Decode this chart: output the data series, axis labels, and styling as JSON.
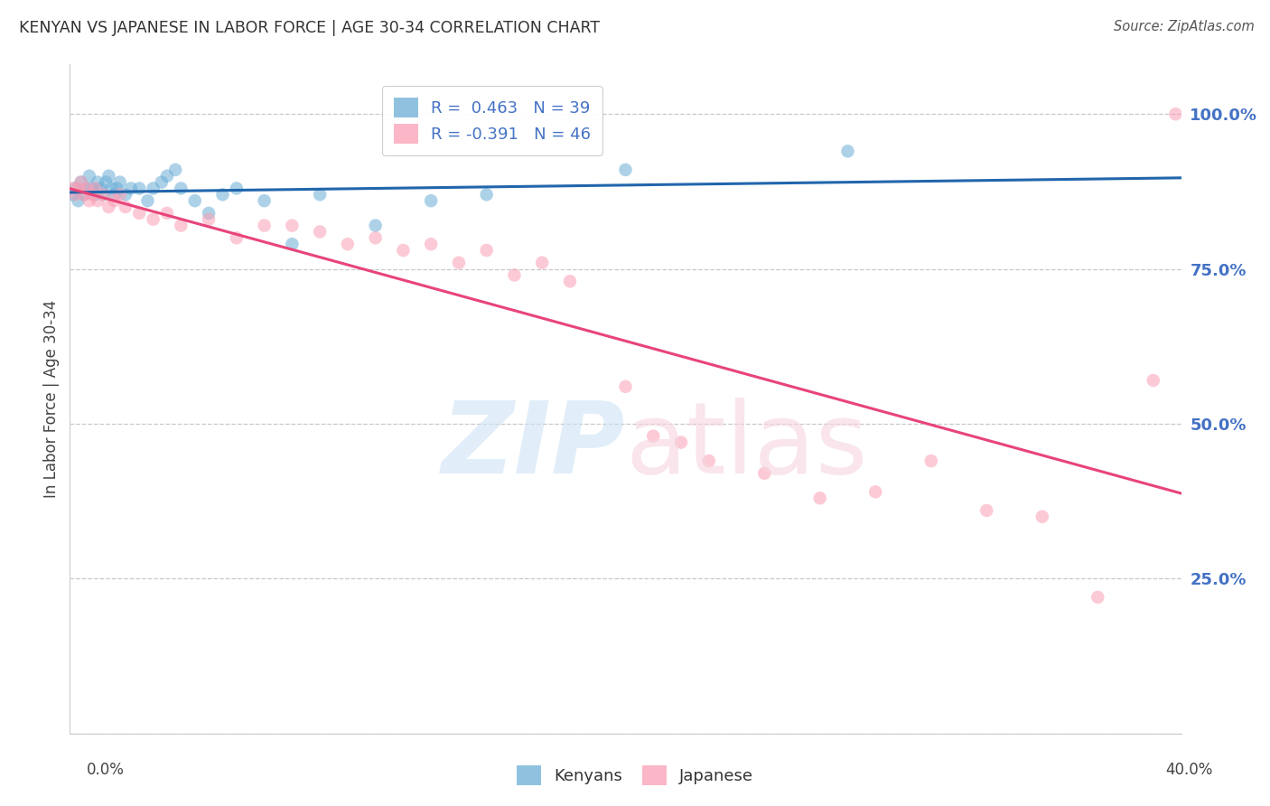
{
  "title": "KENYAN VS JAPANESE IN LABOR FORCE | AGE 30-34 CORRELATION CHART",
  "source": "Source: ZipAtlas.com",
  "ylabel": "In Labor Force | Age 30-34",
  "yticks": [
    0.0,
    0.25,
    0.5,
    0.75,
    1.0
  ],
  "ytick_labels": [
    "",
    "25.0%",
    "50.0%",
    "75.0%",
    "100.0%"
  ],
  "xmin": 0.0,
  "xmax": 0.4,
  "ymin": 0.0,
  "ymax": 1.08,
  "kenyan_R": 0.463,
  "kenyan_N": 39,
  "japanese_R": -0.391,
  "japanese_N": 46,
  "kenyan_color": "#6baed6",
  "japanese_color": "#fa9fb5",
  "kenyan_line_color": "#2166ac",
  "japanese_line_color": "#e8447a",
  "kenyan_x": [
    0.001,
    0.002,
    0.003,
    0.004,
    0.005,
    0.006,
    0.007,
    0.008,
    0.009,
    0.01,
    0.011,
    0.012,
    0.013,
    0.014,
    0.015,
    0.016,
    0.017,
    0.018,
    0.02,
    0.022,
    0.025,
    0.028,
    0.03,
    0.033,
    0.035,
    0.038,
    0.04,
    0.045,
    0.05,
    0.055,
    0.06,
    0.07,
    0.08,
    0.09,
    0.11,
    0.13,
    0.15,
    0.2,
    0.28
  ],
  "kenyan_y": [
    0.87,
    0.88,
    0.86,
    0.89,
    0.87,
    0.88,
    0.9,
    0.88,
    0.87,
    0.89,
    0.88,
    0.87,
    0.89,
    0.9,
    0.88,
    0.87,
    0.88,
    0.89,
    0.87,
    0.88,
    0.88,
    0.86,
    0.88,
    0.89,
    0.9,
    0.91,
    0.88,
    0.86,
    0.84,
    0.87,
    0.88,
    0.86,
    0.79,
    0.87,
    0.82,
    0.86,
    0.87,
    0.91,
    0.94
  ],
  "japanese_x": [
    0.001,
    0.002,
    0.003,
    0.004,
    0.005,
    0.006,
    0.007,
    0.008,
    0.009,
    0.01,
    0.012,
    0.014,
    0.016,
    0.018,
    0.02,
    0.025,
    0.03,
    0.035,
    0.04,
    0.05,
    0.06,
    0.07,
    0.08,
    0.09,
    0.1,
    0.11,
    0.12,
    0.13,
    0.14,
    0.15,
    0.16,
    0.17,
    0.18,
    0.2,
    0.21,
    0.22,
    0.23,
    0.25,
    0.27,
    0.29,
    0.31,
    0.33,
    0.35,
    0.37,
    0.39,
    0.398
  ],
  "japanese_y": [
    0.88,
    0.87,
    0.88,
    0.89,
    0.87,
    0.88,
    0.86,
    0.87,
    0.88,
    0.86,
    0.87,
    0.85,
    0.86,
    0.87,
    0.85,
    0.84,
    0.83,
    0.84,
    0.82,
    0.83,
    0.8,
    0.82,
    0.82,
    0.81,
    0.79,
    0.8,
    0.78,
    0.79,
    0.76,
    0.78,
    0.74,
    0.76,
    0.73,
    0.56,
    0.48,
    0.47,
    0.44,
    0.42,
    0.38,
    0.39,
    0.44,
    0.36,
    0.35,
    0.22,
    0.57,
    1.0
  ],
  "watermark_zip": "ZIP",
  "watermark_atlas": "atlas",
  "background_color": "#ffffff",
  "grid_color": "#c8c8c8",
  "legend_label_kenyan": "R =  0.463   N = 39",
  "legend_label_japanese": "R = -0.391   N = 46",
  "bottom_label_kenyan": "Kenyans",
  "bottom_label_japanese": "Japanese"
}
